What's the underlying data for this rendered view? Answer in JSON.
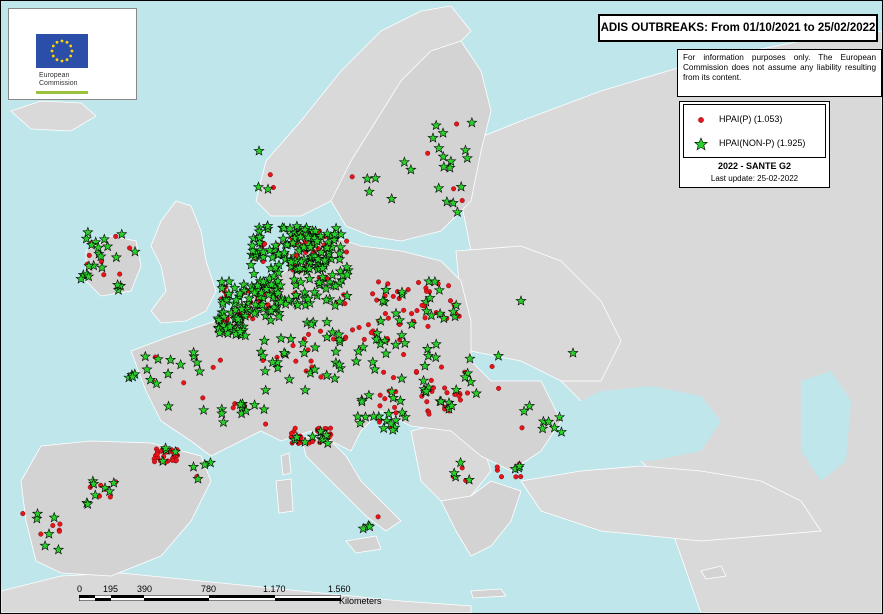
{
  "title": "ADIS OUTBREAKS: From 01/10/2021 to 25/02/2022",
  "disclaimer": "For information purposes only. The European Commission does not assume any liability resulting from its content.",
  "logo": {
    "name": "European Commission",
    "line1": "European",
    "line2": "Commission"
  },
  "legend": {
    "items": [
      {
        "label": "HPAI(P) (1.053)",
        "color": "#e8141b",
        "symbol": "circle"
      },
      {
        "label": "HPAI(NON-P) (1.925)",
        "color": "#2bd12b",
        "symbol": "star"
      }
    ],
    "year_label": "2022 - SANTE G2",
    "last_update": "Last update: 25-02-2022"
  },
  "scale": {
    "ticks": [
      "0",
      "195",
      "390",
      "780",
      "1.170",
      "1.560"
    ],
    "unit": "Kilometers"
  },
  "colors": {
    "sea": "#bfe6ea",
    "land": "#d3d3d3",
    "hpai_p": "#e8141b",
    "hpai_non_p": "#2bd12b"
  }
}
